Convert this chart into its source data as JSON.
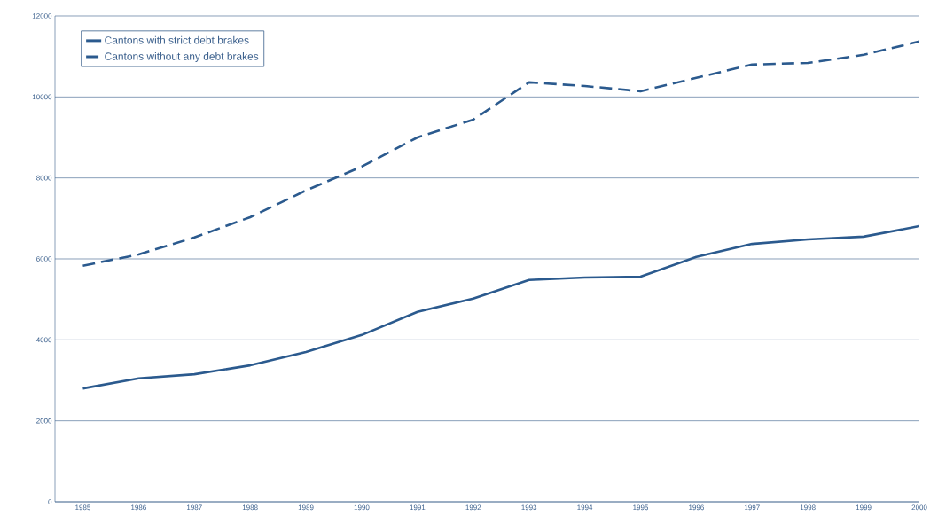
{
  "chart_data": {
    "type": "line",
    "x": [
      1985,
      1986,
      1987,
      1988,
      1989,
      1990,
      1991,
      1992,
      1993,
      1994,
      1995,
      1996,
      1997,
      1998,
      1999,
      2000
    ],
    "series": [
      {
        "name": "Cantons with strict debt brakes",
        "color": "#2b5a8e",
        "line_style": "solid",
        "values": [
          2800,
          3050,
          3150,
          3370,
          3700,
          4120,
          4690,
          5020,
          5480,
          5540,
          5560,
          6050,
          6370,
          6480,
          6550,
          6810
        ]
      },
      {
        "name": "Cantons without any debt brakes",
        "color": "#2b5a8e",
        "line_style": "dashed",
        "values": [
          5830,
          6110,
          6530,
          7030,
          7690,
          8280,
          9000,
          9440,
          10360,
          10270,
          10140,
          10470,
          10800,
          10840,
          11040,
          11370
        ]
      }
    ],
    "xlim": [
      1984.5,
      2000
    ],
    "xticks": [
      1985,
      1986,
      1987,
      1988,
      1989,
      1990,
      1991,
      1992,
      1993,
      1994,
      1995,
      1996,
      1997,
      1998,
      1999,
      2000
    ],
    "ylim": [
      0,
      12000
    ],
    "yticks": [
      0,
      2000,
      4000,
      6000,
      8000,
      10000,
      12000
    ],
    "grid": "y",
    "legend": "top left",
    "marker": "none"
  }
}
